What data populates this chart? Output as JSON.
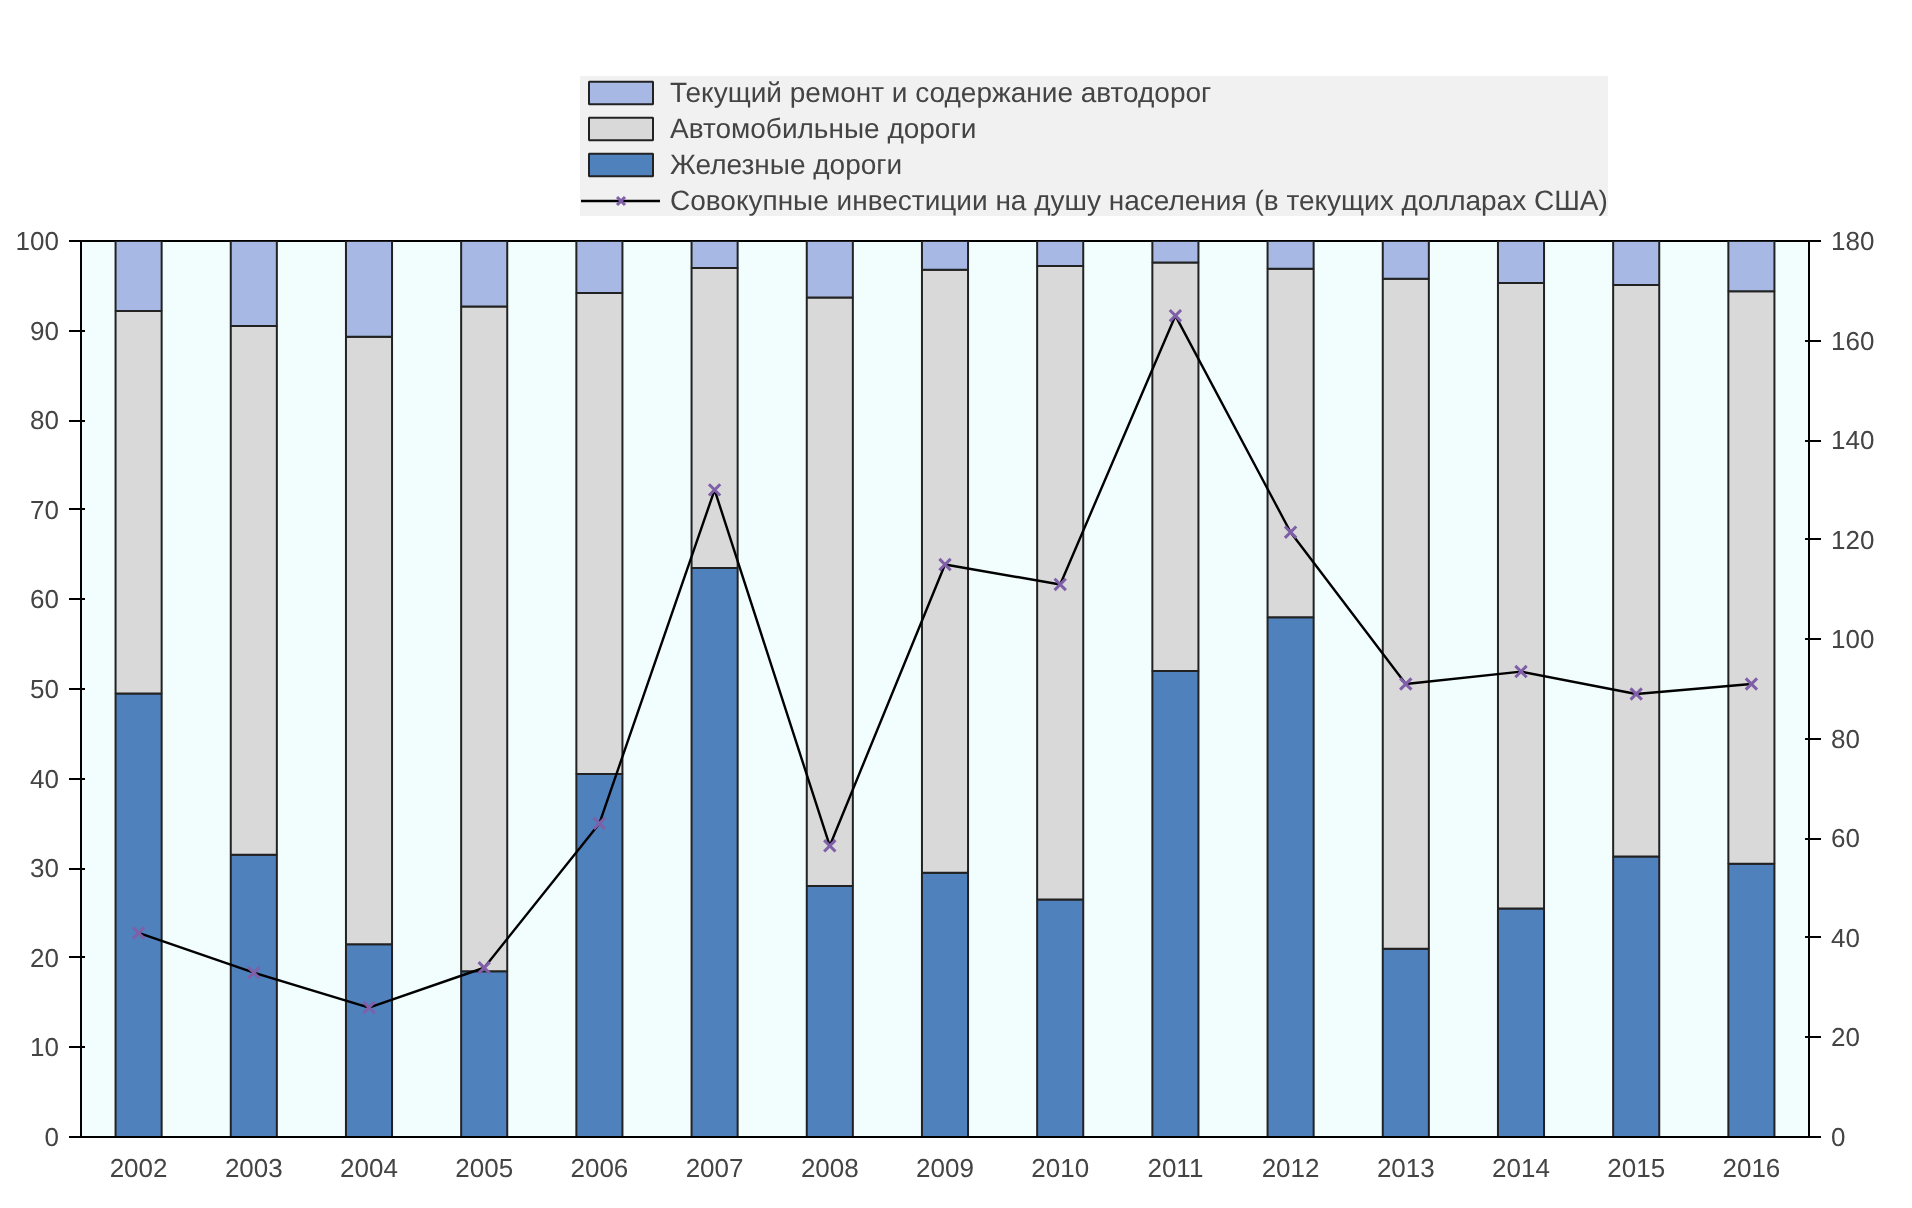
{
  "chart_data": {
    "type": "bar",
    "stacked": true,
    "legend": "top",
    "categories": [
      "2002",
      "2003",
      "2004",
      "2005",
      "2006",
      "2007",
      "2008",
      "2009",
      "2010",
      "2011",
      "2012",
      "2013",
      "2014",
      "2015",
      "2016"
    ],
    "ylim": [
      0,
      100
    ],
    "yticks": [
      0,
      10,
      20,
      30,
      40,
      50,
      60,
      70,
      80,
      90,
      100
    ],
    "y2lim": [
      0,
      180
    ],
    "y2ticks": [
      0,
      20,
      40,
      60,
      80,
      100,
      120,
      140,
      160,
      180
    ],
    "series": [
      {
        "name": "Железные дороги",
        "color": "#4f81bd",
        "values": [
          49.5,
          31.5,
          21.5,
          18.5,
          40.5,
          63.5,
          28,
          29.5,
          26.5,
          52,
          58,
          21,
          25.5,
          31.3,
          30.5
        ]
      },
      {
        "name": "Автомобильные дороги",
        "color": "#d9d9d9",
        "values": [
          42.7,
          59,
          67.8,
          74.2,
          53.7,
          33.5,
          65.7,
          67.3,
          70.7,
          45.6,
          38.9,
          74.8,
          69.8,
          63.8,
          63.9
        ]
      },
      {
        "name": "Текущий ремонт и содержание автодорог",
        "color": "#a6b8e3",
        "values": [
          7.8,
          9.5,
          10.7,
          7.3,
          5.8,
          3,
          6.3,
          3.2,
          2.8,
          2.4,
          3.1,
          4.2,
          4.7,
          4.9,
          5.6
        ]
      },
      {
        "name": "Совокупные инвестиции на душу населения (в текущих долларах США)",
        "type": "line",
        "axis": "y2",
        "color": "#000000",
        "marker": "cross",
        "values": [
          41,
          33,
          26,
          34,
          63,
          130,
          58.5,
          115,
          111,
          165,
          121.5,
          91,
          93.5,
          89,
          91
        ]
      }
    ]
  }
}
